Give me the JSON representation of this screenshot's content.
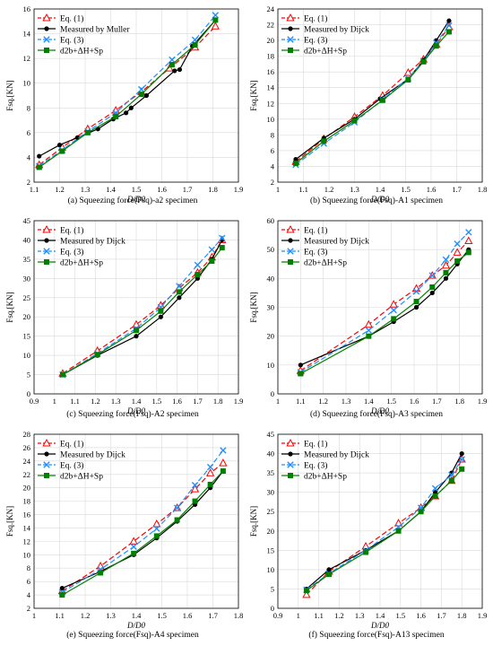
{
  "chart_data": [
    {
      "type": "line",
      "caption": "(a)  Squeezing force(Fsq)-a2 specimen",
      "xlabel": "D/D0",
      "ylabel": "Fsq.[KN]",
      "xlim": [
        1.1,
        1.9
      ],
      "ylim": [
        2,
        16
      ],
      "xticks": [
        1.1,
        1.2,
        1.3,
        1.4,
        1.5,
        1.6,
        1.7,
        1.8,
        1.9
      ],
      "yticks": [
        2,
        4,
        6,
        8,
        10,
        12,
        14,
        16
      ],
      "grid": true,
      "legend_position": "top-left",
      "series": [
        {
          "name": "Eq. (1)",
          "x": [
            1.12,
            1.21,
            1.31,
            1.42,
            1.52,
            1.63,
            1.73,
            1.81
          ],
          "y": [
            3.4,
            4.8,
            6.3,
            7.8,
            9.3,
            11.2,
            12.9,
            14.6
          ]
        },
        {
          "name": "Measured by Muller",
          "x": [
            1.12,
            1.2,
            1.27,
            1.35,
            1.41,
            1.46,
            1.48,
            1.54,
            1.65,
            1.67,
            1.72,
            1.81
          ],
          "y": [
            4.1,
            5.0,
            5.6,
            6.3,
            7.1,
            7.6,
            8.0,
            9.0,
            11.0,
            11.1,
            13.0,
            15.1
          ]
        },
        {
          "name": "Eq. (3)",
          "x": [
            1.12,
            1.21,
            1.31,
            1.42,
            1.52,
            1.64,
            1.73,
            1.81
          ],
          "y": [
            3.3,
            4.6,
            6.1,
            7.6,
            9.5,
            11.9,
            13.5,
            15.5
          ]
        },
        {
          "name": "d2b+ΔH+Sp",
          "x": [
            1.12,
            1.21,
            1.31,
            1.42,
            1.52,
            1.64,
            1.73,
            1.81
          ],
          "y": [
            3.2,
            4.5,
            6.0,
            7.3,
            9.1,
            11.5,
            13.1,
            15.1
          ]
        }
      ]
    },
    {
      "type": "line",
      "caption": "(b)  Squeezing force(Fsq)-A1 specimen",
      "xlabel": "D/D0",
      "ylabel": "Fsq.[KN]",
      "xlim": [
        1.0,
        1.8
      ],
      "ylim": [
        2,
        24
      ],
      "xticks": [
        1.0,
        1.1,
        1.2,
        1.3,
        1.4,
        1.5,
        1.6,
        1.7,
        1.8
      ],
      "yticks": [
        2,
        4,
        6,
        8,
        10,
        12,
        14,
        16,
        18,
        20,
        22,
        24
      ],
      "grid": true,
      "legend_position": "top-left",
      "series": [
        {
          "name": "Eq. (1)",
          "x": [
            1.07,
            1.18,
            1.3,
            1.41,
            1.51,
            1.57,
            1.62,
            1.67
          ],
          "y": [
            4.6,
            7.5,
            10.3,
            13.0,
            15.9,
            17.6,
            19.5,
            21.7
          ]
        },
        {
          "name": "Measured by Dijck",
          "x": [
            1.07,
            1.18,
            1.3,
            1.4,
            1.51,
            1.57,
            1.62,
            1.67
          ],
          "y": [
            4.9,
            7.6,
            10.0,
            12.6,
            15.1,
            17.5,
            20.0,
            22.5
          ]
        },
        {
          "name": "Eq. (3)",
          "x": [
            1.07,
            1.18,
            1.3,
            1.41,
            1.51,
            1.57,
            1.62,
            1.67
          ],
          "y": [
            4.2,
            6.9,
            9.6,
            12.5,
            15.2,
            17.4,
            19.7,
            21.9
          ]
        },
        {
          "name": "d2b+ΔH+Sp",
          "x": [
            1.07,
            1.18,
            1.3,
            1.41,
            1.51,
            1.57,
            1.62,
            1.67
          ],
          "y": [
            4.4,
            7.2,
            9.8,
            12.4,
            15.0,
            17.3,
            19.3,
            21.1
          ]
        }
      ]
    },
    {
      "type": "line",
      "caption": "(c)  Squeezing force(Fsq)-A2 specimen",
      "xlabel": "D/D0",
      "ylabel": "Fsq.[KN]",
      "xlim": [
        0.9,
        1.9
      ],
      "ylim": [
        0,
        45
      ],
      "xticks": [
        0.9,
        1.0,
        1.1,
        1.2,
        1.3,
        1.4,
        1.5,
        1.6,
        1.7,
        1.8,
        1.9
      ],
      "yticks": [
        0,
        5,
        10,
        15,
        20,
        25,
        30,
        35,
        40,
        45
      ],
      "grid": true,
      "legend_position": "top-left",
      "series": [
        {
          "name": "Eq. (1)",
          "x": [
            1.04,
            1.21,
            1.4,
            1.52,
            1.61,
            1.7,
            1.77,
            1.82
          ],
          "y": [
            5.3,
            11.2,
            18.0,
            23.0,
            27.5,
            31.5,
            35.5,
            40.0
          ]
        },
        {
          "name": "Measured by Dijck",
          "x": [
            1.04,
            1.21,
            1.4,
            1.52,
            1.61,
            1.7,
            1.77,
            1.82
          ],
          "y": [
            5.0,
            10.0,
            15.0,
            20.0,
            25.0,
            30.0,
            35.0,
            40.0
          ]
        },
        {
          "name": "Eq. (3)",
          "x": [
            1.04,
            1.21,
            1.4,
            1.52,
            1.61,
            1.7,
            1.77,
            1.82
          ],
          "y": [
            5.0,
            10.5,
            17.0,
            22.5,
            28.0,
            33.5,
            37.5,
            40.5
          ]
        },
        {
          "name": "d2b+ΔH+Sp",
          "x": [
            1.04,
            1.21,
            1.4,
            1.52,
            1.61,
            1.7,
            1.77,
            1.82
          ],
          "y": [
            5.0,
            10.2,
            16.5,
            21.5,
            26.5,
            31.0,
            34.5,
            38.0
          ]
        }
      ]
    },
    {
      "type": "line",
      "caption": "(d)  Squeezing force(Fsq)-A3 specimen",
      "xlabel": "D/D0",
      "ylabel": "Fsq.[KN]",
      "xlim": [
        1.0,
        1.9
      ],
      "ylim": [
        0,
        60
      ],
      "xticks": [
        1.0,
        1.1,
        1.2,
        1.3,
        1.4,
        1.5,
        1.6,
        1.7,
        1.8,
        1.9
      ],
      "yticks": [
        0,
        10,
        20,
        30,
        40,
        50,
        60
      ],
      "grid": true,
      "legend_position": "top-left",
      "series": [
        {
          "name": "Eq. (1)",
          "x": [
            1.1,
            1.4,
            1.51,
            1.61,
            1.68,
            1.74,
            1.79,
            1.84
          ],
          "y": [
            8.0,
            24.0,
            31.0,
            36.5,
            41.0,
            44.5,
            49.0,
            53.0
          ]
        },
        {
          "name": "Measured by Dijck",
          "x": [
            1.1,
            1.4,
            1.51,
            1.61,
            1.68,
            1.74,
            1.79,
            1.84
          ],
          "y": [
            10.0,
            20.0,
            25.0,
            30.0,
            35.0,
            40.0,
            45.0,
            50.0
          ]
        },
        {
          "name": "Eq. (3)",
          "x": [
            1.1,
            1.4,
            1.51,
            1.61,
            1.68,
            1.74,
            1.79,
            1.84
          ],
          "y": [
            7.5,
            22.0,
            29.0,
            35.5,
            41.0,
            46.5,
            52.0,
            56.0
          ]
        },
        {
          "name": "d2b+ΔH+Sp",
          "x": [
            1.1,
            1.4,
            1.51,
            1.61,
            1.68,
            1.74,
            1.79,
            1.84
          ],
          "y": [
            7.0,
            20.0,
            26.0,
            32.0,
            37.0,
            42.0,
            46.0,
            49.0
          ]
        }
      ]
    },
    {
      "type": "line",
      "caption": "(e)  Squeezing force(Fsq)-A4 specimen",
      "xlabel": "D/D0",
      "ylabel": "Fsq.[KN]",
      "xlim": [
        1.0,
        1.8
      ],
      "ylim": [
        2,
        28
      ],
      "xticks": [
        1.0,
        1.1,
        1.2,
        1.3,
        1.4,
        1.5,
        1.6,
        1.7,
        1.8
      ],
      "yticks": [
        2,
        4,
        6,
        8,
        10,
        12,
        14,
        16,
        18,
        20,
        22,
        24,
        26,
        28
      ],
      "grid": true,
      "legend_position": "top-left",
      "series": [
        {
          "name": "Eq. (1)",
          "x": [
            1.11,
            1.26,
            1.39,
            1.48,
            1.56,
            1.63,
            1.69,
            1.74
          ],
          "y": [
            4.6,
            8.3,
            12.0,
            14.6,
            17.0,
            19.8,
            22.2,
            23.7
          ]
        },
        {
          "name": "Measured by Dijck",
          "x": [
            1.11,
            1.26,
            1.39,
            1.48,
            1.56,
            1.63,
            1.69,
            1.74
          ],
          "y": [
            5.0,
            7.5,
            10.0,
            12.5,
            15.0,
            17.5,
            20.0,
            22.5
          ]
        },
        {
          "name": "Eq. (3)",
          "x": [
            1.11,
            1.26,
            1.39,
            1.48,
            1.56,
            1.63,
            1.69,
            1.74
          ],
          "y": [
            4.4,
            7.8,
            11.2,
            13.9,
            17.0,
            20.4,
            23.1,
            25.6
          ]
        },
        {
          "name": "d2b+ΔH+Sp",
          "x": [
            1.11,
            1.26,
            1.39,
            1.48,
            1.56,
            1.63,
            1.69,
            1.74
          ],
          "y": [
            4.0,
            7.3,
            10.2,
            12.8,
            15.2,
            18.0,
            20.5,
            22.5
          ]
        }
      ]
    },
    {
      "type": "line",
      "caption": "(f)  Squeezing force(Fsq)-A13 specimen",
      "xlabel": "D/D0",
      "ylabel": "Fsq.[KN]",
      "xlim": [
        0.9,
        1.9
      ],
      "ylim": [
        0,
        45
      ],
      "xticks": [
        0.9,
        1.0,
        1.1,
        1.2,
        1.3,
        1.4,
        1.5,
        1.6,
        1.7,
        1.8,
        1.9
      ],
      "yticks": [
        0,
        5,
        10,
        15,
        20,
        25,
        30,
        35,
        40,
        45
      ],
      "grid": true,
      "legend_position": "top-left",
      "series": [
        {
          "name": "Eq. (1)",
          "x": [
            1.04,
            1.15,
            1.33,
            1.49,
            1.6,
            1.67,
            1.75,
            1.8
          ],
          "y": [
            3.5,
            9.5,
            16.0,
            22.0,
            26.0,
            29.0,
            33.0,
            38.5
          ]
        },
        {
          "name": "Measured by Dijck",
          "x": [
            1.04,
            1.15,
            1.33,
            1.49,
            1.6,
            1.67,
            1.75,
            1.8
          ],
          "y": [
            5.0,
            10.0,
            15.0,
            20.0,
            25.0,
            30.0,
            35.0,
            40.0
          ]
        },
        {
          "name": "Eq. (3)",
          "x": [
            1.04,
            1.15,
            1.33,
            1.49,
            1.6,
            1.67,
            1.75,
            1.8
          ],
          "y": [
            4.8,
            9.0,
            15.0,
            21.0,
            26.0,
            31.0,
            34.5,
            38.5
          ]
        },
        {
          "name": "d2b+ΔH+Sp",
          "x": [
            1.04,
            1.15,
            1.33,
            1.49,
            1.6,
            1.67,
            1.75,
            1.8
          ],
          "y": [
            4.6,
            8.8,
            14.5,
            20.0,
            25.0,
            29.0,
            33.0,
            36.0
          ]
        }
      ]
    }
  ],
  "styles": {
    "series_colors": [
      "#ff0000",
      "#000000",
      "#1e90ff",
      "#008000"
    ],
    "series_dash": [
      "dashed",
      "solid",
      "dashed",
      "solid"
    ],
    "series_markers": [
      "open-triangle",
      "filled-circle",
      "x-cross",
      "filled-square"
    ],
    "grid_color": "#d9d9d9"
  }
}
